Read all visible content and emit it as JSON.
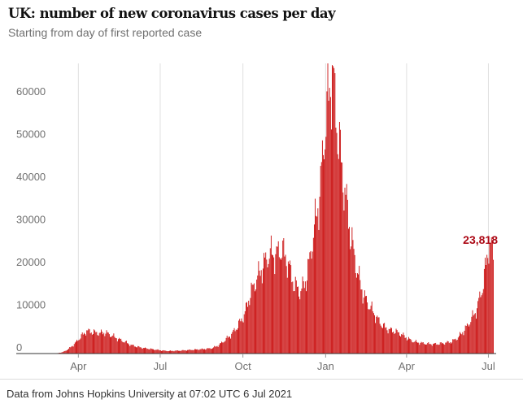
{
  "header": {
    "title": "UK: number of new coronavirus cases per day",
    "subtitle": "Starting from day of first reported case"
  },
  "footer": {
    "source": "Data from Johns Hopkins University at 07:02 UTC 6 Jul 2021"
  },
  "colors": {
    "bar": "#c70000",
    "bar_edge": "#e24141",
    "annotation": "#ab0613",
    "grid": "#e0e0e0",
    "tick_text": "#707070"
  },
  "chart_data": {
    "type": "bar",
    "title": "UK: number of new coronavirus cases per day",
    "subtitle": "Starting from day of first reported case",
    "x_range": [
      "2020-02-01",
      "2021-07-06"
    ],
    "ylim": [
      0,
      68000
    ],
    "yticks": [
      {
        "value": 0,
        "label": "0"
      },
      {
        "value": 10000,
        "label": "10000"
      },
      {
        "value": 20000,
        "label": "20000"
      },
      {
        "value": 30000,
        "label": "30000"
      },
      {
        "value": 40000,
        "label": "40000"
      },
      {
        "value": 50000,
        "label": "50000"
      },
      {
        "value": 60000,
        "label": "60000"
      }
    ],
    "xticks": [
      {
        "date": "2020-04-01",
        "label": "Apr"
      },
      {
        "date": "2020-07-01",
        "label": "Jul"
      },
      {
        "date": "2020-10-01",
        "label": "Oct"
      },
      {
        "date": "2021-01-01",
        "label": "Jan"
      },
      {
        "date": "2021-04-01",
        "label": "Apr"
      },
      {
        "date": "2021-07-01",
        "label": "Jul"
      }
    ],
    "grid": "vertical",
    "series": [
      {
        "values_description": "approximate daily new cases, sampled roughly weekly",
        "points": [
          [
            "2020-02-01",
            0
          ],
          [
            "2020-02-29",
            0
          ],
          [
            "2020-03-07",
            50
          ],
          [
            "2020-03-14",
            300
          ],
          [
            "2020-03-21",
            1100
          ],
          [
            "2020-03-28",
            2400
          ],
          [
            "2020-04-04",
            4100
          ],
          [
            "2020-04-10",
            5300
          ],
          [
            "2020-04-17",
            5000
          ],
          [
            "2020-04-24",
            4800
          ],
          [
            "2020-05-01",
            4900
          ],
          [
            "2020-05-08",
            4200
          ],
          [
            "2020-05-15",
            3400
          ],
          [
            "2020-05-22",
            2800
          ],
          [
            "2020-05-29",
            2000
          ],
          [
            "2020-06-05",
            1600
          ],
          [
            "2020-06-12",
            1300
          ],
          [
            "2020-06-19",
            1100
          ],
          [
            "2020-06-26",
            900
          ],
          [
            "2020-07-03",
            700
          ],
          [
            "2020-07-10",
            600
          ],
          [
            "2020-07-17",
            650
          ],
          [
            "2020-07-24",
            700
          ],
          [
            "2020-07-31",
            800
          ],
          [
            "2020-08-07",
            900
          ],
          [
            "2020-08-14",
            1000
          ],
          [
            "2020-08-21",
            1100
          ],
          [
            "2020-08-28",
            1300
          ],
          [
            "2020-09-04",
            2000
          ],
          [
            "2020-09-11",
            3200
          ],
          [
            "2020-09-18",
            4500
          ],
          [
            "2020-09-25",
            6500
          ],
          [
            "2020-10-02",
            9000
          ],
          [
            "2020-10-09",
            14000
          ],
          [
            "2020-10-16",
            17500
          ],
          [
            "2020-10-23",
            20500
          ],
          [
            "2020-10-30",
            23500
          ],
          [
            "2020-11-06",
            23000
          ],
          [
            "2020-11-13",
            24500
          ],
          [
            "2020-11-20",
            21000
          ],
          [
            "2020-11-27",
            16000
          ],
          [
            "2020-12-04",
            14500
          ],
          [
            "2020-12-11",
            18000
          ],
          [
            "2020-12-18",
            28000
          ],
          [
            "2020-12-25",
            37000
          ],
          [
            "2020-12-29",
            48000
          ],
          [
            "2021-01-02",
            57000
          ],
          [
            "2021-01-08",
            66000
          ],
          [
            "2021-01-15",
            50000
          ],
          [
            "2021-01-22",
            38000
          ],
          [
            "2021-01-29",
            27000
          ],
          [
            "2021-02-05",
            19000
          ],
          [
            "2021-02-12",
            13500
          ],
          [
            "2021-02-19",
            11000
          ],
          [
            "2021-02-26",
            8500
          ],
          [
            "2021-03-05",
            6500
          ],
          [
            "2021-03-12",
            5600
          ],
          [
            "2021-03-19",
            5200
          ],
          [
            "2021-03-26",
            4500
          ],
          [
            "2021-04-02",
            3500
          ],
          [
            "2021-04-09",
            2800
          ],
          [
            "2021-04-16",
            2500
          ],
          [
            "2021-04-23",
            2300
          ],
          [
            "2021-04-30",
            2200
          ],
          [
            "2021-05-07",
            2300
          ],
          [
            "2021-05-14",
            2500
          ],
          [
            "2021-05-21",
            2800
          ],
          [
            "2021-05-28",
            3800
          ],
          [
            "2021-06-04",
            5500
          ],
          [
            "2021-06-11",
            7800
          ],
          [
            "2021-06-18",
            10500
          ],
          [
            "2021-06-25",
            16500
          ],
          [
            "2021-07-01",
            25500
          ],
          [
            "2021-07-06",
            23818
          ]
        ]
      }
    ],
    "annotation": {
      "date": "2021-07-06",
      "value": 23818,
      "label": "23,818"
    }
  }
}
